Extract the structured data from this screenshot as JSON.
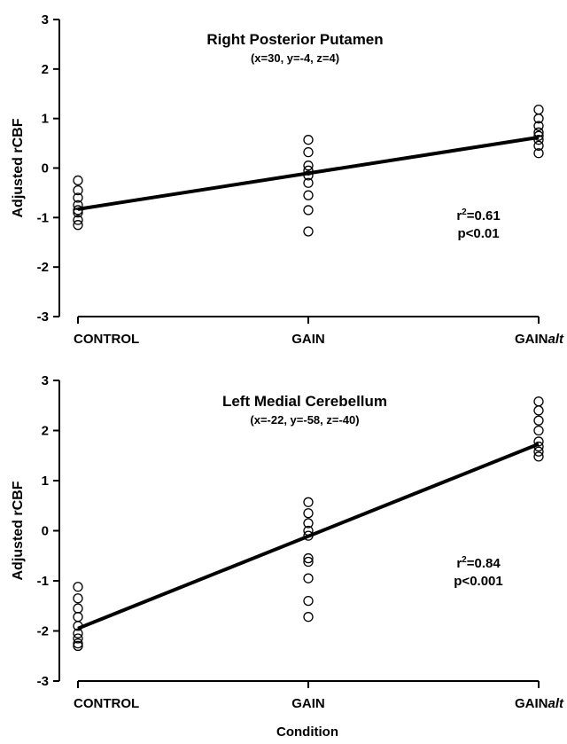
{
  "figure": {
    "xlabel": "Condition"
  },
  "chart_data": [
    {
      "type": "scatter",
      "title": "Right Posterior Putamen",
      "subtitle": "(x=30, y=-4, z=4)",
      "ylabel": "Adjusted rCBF",
      "xlabel": "",
      "categories": [
        "CONTROL",
        "GAIN",
        "GAINalt"
      ],
      "category_labels": [
        {
          "main": "CONTROL",
          "italic": ""
        },
        {
          "main": "GAIN",
          "italic": ""
        },
        {
          "main": "GAIN",
          "italic": "alt"
        }
      ],
      "ylim": [
        -3,
        3
      ],
      "yticks": [
        -3,
        -2,
        -1,
        0,
        1,
        2,
        3
      ],
      "points": [
        {
          "category": "CONTROL",
          "values": [
            -0.25,
            -0.45,
            -0.6,
            -0.75,
            -0.85,
            -0.9,
            -1.05,
            -1.15
          ]
        },
        {
          "category": "GAIN",
          "values": [
            0.57,
            0.32,
            0.05,
            -0.05,
            -0.15,
            -0.3,
            -0.55,
            -0.85,
            -1.28
          ]
        },
        {
          "category": "GAINalt",
          "values": [
            1.18,
            1.0,
            0.85,
            0.72,
            0.65,
            0.57,
            0.45,
            0.3
          ]
        }
      ],
      "fit_line": {
        "start": -0.83,
        "end": 0.62
      },
      "stats": {
        "r2_prefix": "r",
        "r2_exp": "2",
        "r2_value": "=0.61",
        "p": "p<0.01"
      }
    },
    {
      "type": "scatter",
      "title": "Left Medial Cerebellum",
      "subtitle": "(x=-22, y=-58, z=-40)",
      "ylabel": "Adjusted rCBF",
      "xlabel": "Condition",
      "categories": [
        "CONTROL",
        "GAIN",
        "GAINalt"
      ],
      "category_labels": [
        {
          "main": "CONTROL",
          "italic": ""
        },
        {
          "main": "GAIN",
          "italic": ""
        },
        {
          "main": "GAIN",
          "italic": "alt"
        }
      ],
      "ylim": [
        -3,
        3
      ],
      "yticks": [
        -3,
        -2,
        -1,
        0,
        1,
        2,
        3
      ],
      "points": [
        {
          "category": "CONTROL",
          "values": [
            -1.12,
            -1.35,
            -1.55,
            -1.72,
            -1.9,
            -2.05,
            -2.15,
            -2.25,
            -2.3
          ]
        },
        {
          "category": "GAIN",
          "values": [
            0.57,
            0.35,
            0.15,
            0.0,
            -0.1,
            -0.55,
            -0.62,
            -0.95,
            -1.4,
            -1.72
          ]
        },
        {
          "category": "GAINalt",
          "values": [
            2.58,
            2.4,
            2.2,
            2.0,
            1.78,
            1.68,
            1.58,
            1.48
          ]
        }
      ],
      "fit_line": {
        "start": -1.95,
        "end": 1.73
      },
      "stats": {
        "r2_prefix": "r",
        "r2_exp": "2",
        "r2_value": "=0.84",
        "p": "p<0.001"
      }
    }
  ]
}
